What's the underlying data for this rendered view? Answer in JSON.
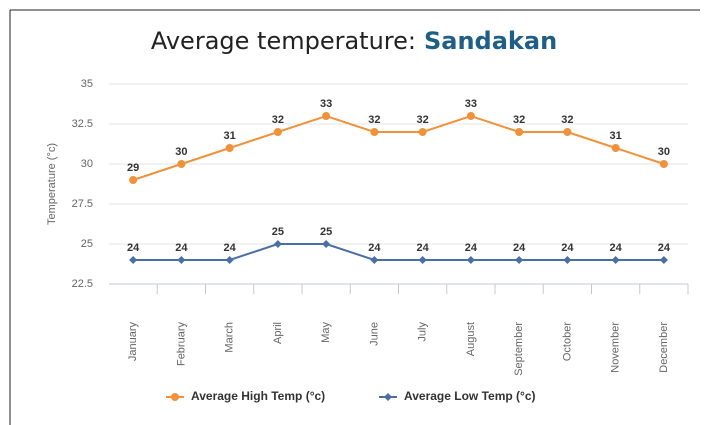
{
  "chart_data": {
    "type": "line",
    "title": "Average temperature:",
    "location": "Sandakan",
    "y_label": "Temperature (°c)",
    "categories": [
      "January",
      "February",
      "March",
      "April",
      "May",
      "June",
      "July",
      "August",
      "September",
      "October",
      "November",
      "December"
    ],
    "series": [
      {
        "name": "Average High Temp (°c)",
        "color": "#f0923a",
        "marker": "circle",
        "values": [
          29,
          30,
          31,
          32,
          33,
          32,
          32,
          33,
          32,
          32,
          31,
          30
        ]
      },
      {
        "name": "Average Low Temp (°c)",
        "color": "#4a6fa5",
        "marker": "diamond",
        "values": [
          24,
          24,
          24,
          25,
          25,
          24,
          24,
          24,
          24,
          24,
          24,
          24
        ]
      }
    ],
    "ylim": [
      22.5,
      35
    ],
    "yticks": [
      22.5,
      25,
      27.5,
      30,
      32.5,
      35
    ],
    "grid": true
  }
}
